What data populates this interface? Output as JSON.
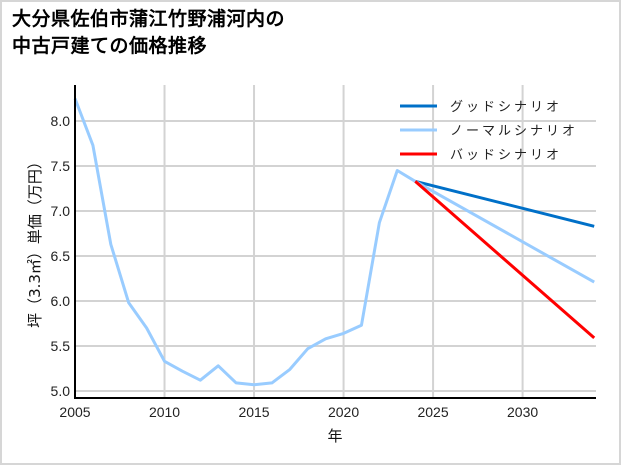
{
  "title_line1": "大分県佐伯市蒲江竹野浦河内の",
  "title_line2": "中古戸建ての価格推移",
  "chart_data": {
    "type": "line",
    "title": "大分県佐伯市蒲江竹野浦河内の中古戸建ての価格推移",
    "xlabel": "年",
    "ylabel": "坪（3.3㎡）単価（万円）",
    "xlim": [
      2005,
      2034
    ],
    "ylim": [
      4.92,
      8.35
    ],
    "x_ticks": [
      2005,
      2010,
      2015,
      2020,
      2025,
      2030
    ],
    "y_ticks": [
      5.0,
      5.5,
      6.0,
      6.5,
      7.0,
      7.5,
      8.0
    ],
    "grid": true,
    "legend_position": "upper right",
    "history": {
      "x": [
        2005,
        2006,
        2007,
        2008,
        2009,
        2010,
        2011,
        2012,
        2013,
        2014,
        2015,
        2016,
        2017,
        2018,
        2019,
        2020,
        2021,
        2022,
        2023,
        2024
      ],
      "y": [
        8.25,
        7.73,
        6.63,
        5.98,
        5.7,
        5.33,
        5.22,
        5.12,
        5.28,
        5.09,
        5.07,
        5.09,
        5.24,
        5.47,
        5.58,
        5.64,
        5.73,
        6.87,
        7.45,
        7.33
      ]
    },
    "series": [
      {
        "name": "グッドシナリオ",
        "color": "#0070c8",
        "x": [
          2024,
          2034
        ],
        "y": [
          7.33,
          6.83
        ]
      },
      {
        "name": "ノーマルシナリオ",
        "color": "#99ccff",
        "x": [
          2024,
          2034
        ],
        "y": [
          7.33,
          6.21
        ]
      },
      {
        "name": "バッドシナリオ",
        "color": "#ff0000",
        "x": [
          2024,
          2034
        ],
        "y": [
          7.33,
          5.59
        ]
      }
    ]
  }
}
